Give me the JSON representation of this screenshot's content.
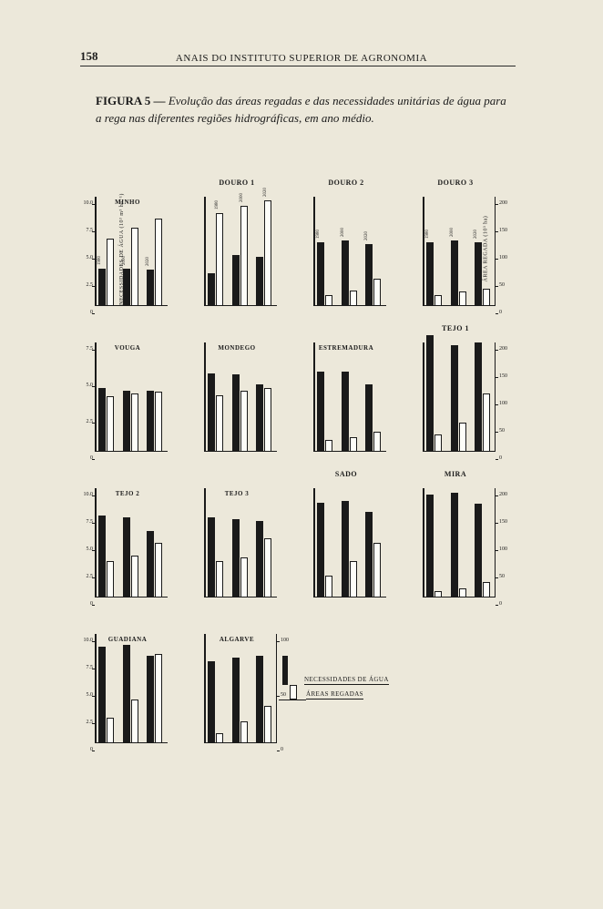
{
  "page_number": "158",
  "header": "ANAIS DO INSTITUTO SUPERIOR DE AGRONOMIA",
  "caption": {
    "fig": "FIGURA 5 — ",
    "text": "Evolução das áreas regadas e das necessidades unitárias de água para a rega nas diferentes regiões hidrográficas, em ano médio."
  },
  "left_axis_label": "NECESSIDADES DE ÁGUA (10³ m³ ha⁻¹)",
  "right_axis_label": "ÁREA REGADA (10³ ha)",
  "years": [
    "1980",
    "2000",
    "2020"
  ],
  "left_ticks_10": [
    "0",
    "2.5",
    "5.0",
    "7.5",
    "10.0"
  ],
  "left_ticks_75": [
    "0",
    "2.5",
    "5.0",
    "7.5"
  ],
  "right_ticks_200": [
    "0",
    "50",
    "100",
    "150",
    "200"
  ],
  "right_ticks_100": [
    "0",
    "50",
    "100"
  ],
  "chart_area_height": 120,
  "legend": {
    "necessidades": "NECESSIDADES DE ÁGUA",
    "areas": "ÁREAS REGADAS"
  },
  "colors": {
    "page_bg": "#ece8da",
    "ink": "#1a1a1a",
    "bar_black": "#1a1a1a",
    "bar_white_fill": "#fdfdf8",
    "bar_white_border": "#1a1a1a"
  },
  "charts": [
    [
      {
        "title": "MINHO",
        "top": "",
        "ymax": 10,
        "ticks": "left_ticks_10",
        "show_left_label": true,
        "black": [
          3.4,
          3.4,
          3.3
        ],
        "white": [
          6.2,
          7.2,
          8.0
        ],
        "year_labels_on": "black"
      },
      {
        "title": "",
        "top": "DOURO 1",
        "ymax": 10,
        "ticks": "",
        "black": [
          3.0,
          4.7,
          4.5
        ],
        "white": [
          8.5,
          9.2,
          9.7
        ],
        "year_labels_on": "white"
      },
      {
        "title": "",
        "top": "DOURO 2",
        "ymax": 10,
        "ticks": "",
        "black": [
          5.8,
          6.0,
          5.7
        ],
        "white": [
          1.0,
          1.4,
          2.5
        ],
        "year_labels_on": "black",
        "rmax": 200,
        "rticks": "right_ticks_200"
      },
      {
        "title": "",
        "top": "DOURO 3",
        "ymax": 10,
        "ticks": "",
        "black": [
          5.8,
          6.0,
          5.8
        ],
        "white": [
          1.0,
          1.3,
          1.6
        ],
        "year_labels_on": "black",
        "show_right_axis": true,
        "show_right_label": true,
        "rmax": 200,
        "rticks": "right_ticks_200"
      }
    ],
    [
      {
        "title": "VOUGA",
        "top": "",
        "ymax": 7.5,
        "ticks": "left_ticks_75",
        "black": [
          4.4,
          4.2,
          4.2
        ],
        "white": [
          3.8,
          4.0,
          4.1
        ]
      },
      {
        "title": "MONDEGO",
        "top": "",
        "ymax": 7.5,
        "ticks": "",
        "black": [
          5.4,
          5.3,
          4.6
        ],
        "white": [
          3.9,
          4.2,
          4.4
        ]
      },
      {
        "title": "ESTREMADURA",
        "top": "",
        "ymax": 7.5,
        "ticks": "",
        "black": [
          5.5,
          5.5,
          4.6
        ],
        "white": [
          0.8,
          1.0,
          1.4
        ]
      },
      {
        "title": "",
        "top": "TEJO 1",
        "ymax": 7.5,
        "ticks": "",
        "black": [
          8.0,
          7.3,
          7.5
        ],
        "white": [
          1.2,
          2.0,
          4.0
        ],
        "show_right_axis": true,
        "rmax": 200,
        "rticks": "right_ticks_200"
      }
    ],
    [
      {
        "title": "TEJO 2",
        "top": "",
        "ymax": 10,
        "ticks": "left_ticks_10",
        "black": [
          7.5,
          7.3,
          6.1
        ],
        "white": [
          3.3,
          3.8,
          5.0
        ]
      },
      {
        "title": "TEJO 3",
        "top": "",
        "ymax": 10,
        "ticks": "",
        "black": [
          7.3,
          7.2,
          7.0
        ],
        "white": [
          3.3,
          3.7,
          5.4
        ]
      },
      {
        "title": "",
        "top": "SADO",
        "ymax": 10,
        "ticks": "",
        "black": [
          8.7,
          8.8,
          7.8
        ],
        "white": [
          2.0,
          3.3,
          5.0
        ]
      },
      {
        "title": "",
        "top": "MIRA",
        "ymax": 10,
        "ticks": "",
        "black": [
          9.4,
          9.6,
          8.6
        ],
        "white": [
          0.6,
          0.8,
          1.4
        ],
        "show_right_axis": true,
        "rmax": 200,
        "rticks": "right_ticks_200"
      }
    ],
    [
      {
        "title": "GUADIANA",
        "top": "",
        "ymax": 10,
        "ticks": "left_ticks_10",
        "black": [
          8.8,
          9.0,
          8.0
        ],
        "white": [
          2.3,
          4.0,
          8.2
        ]
      },
      {
        "title": "ALGARVE",
        "top": "",
        "ymax": 10,
        "ticks": "",
        "black": [
          7.5,
          7.8,
          8.0
        ],
        "white": [
          0.9,
          2.0,
          3.4
        ],
        "show_right_axis": true,
        "rmax": 100,
        "rticks": "right_ticks_100"
      }
    ]
  ]
}
